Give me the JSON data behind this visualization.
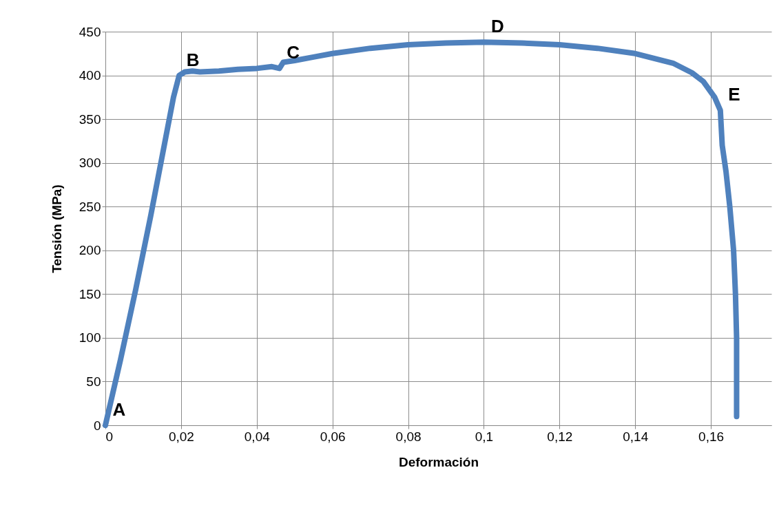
{
  "chart_data": {
    "type": "line",
    "xlabel": "Deformación",
    "ylabel": "Tensión (MPa)",
    "x": [
      0,
      0.004,
      0.008,
      0.012,
      0.016,
      0.018,
      0.0195,
      0.021,
      0.023,
      0.025,
      0.03,
      0.035,
      0.04,
      0.044,
      0.046,
      0.047,
      0.05,
      0.055,
      0.06,
      0.07,
      0.08,
      0.09,
      0.1,
      0.11,
      0.12,
      0.13,
      0.14,
      0.15,
      0.155,
      0.158,
      0.161,
      0.1625,
      0.163,
      0.164,
      0.165,
      0.166,
      0.1665,
      0.1668,
      0.1668
    ],
    "series": [
      {
        "color": "#4f81bd",
        "values": [
          0,
          75,
          155,
          240,
          330,
          375,
          400,
          404,
          405,
          404,
          405,
          407,
          408,
          410,
          408,
          415,
          417,
          421,
          425,
          431,
          435,
          437,
          438,
          437,
          435,
          431,
          425,
          414,
          403,
          393,
          375,
          360,
          320,
          290,
          250,
          200,
          150,
          100,
          10
        ]
      }
    ],
    "xlim": [
      0,
      0.176
    ],
    "xticks": [
      0,
      {
        "value": 0.02,
        "label": "0,02"
      },
      {
        "value": 0.04,
        "label": "0,04"
      },
      {
        "value": 0.06,
        "label": "0,06"
      },
      {
        "value": 0.08,
        "label": "0,08"
      },
      {
        "value": 0.1,
        "label": "0,1"
      },
      {
        "value": 0.12,
        "label": "0,12"
      },
      {
        "value": 0.14,
        "label": "0,14"
      },
      {
        "value": 0.16,
        "label": "0,16"
      }
    ],
    "ylim": [
      0,
      450
    ],
    "yticks": [
      0,
      50,
      100,
      150,
      200,
      250,
      300,
      350,
      400,
      450
    ],
    "grid": true,
    "line_style": "solid",
    "annotations": [
      {
        "text": "A",
        "x": 0,
        "y": 0
      },
      {
        "text": "B",
        "x": 0.0195,
        "y": 400
      },
      {
        "text": "C",
        "x": 0.046,
        "y": 408
      },
      {
        "text": "D",
        "x": 0.1,
        "y": 438
      },
      {
        "text": "E",
        "x": 0.1625,
        "y": 360
      }
    ]
  }
}
